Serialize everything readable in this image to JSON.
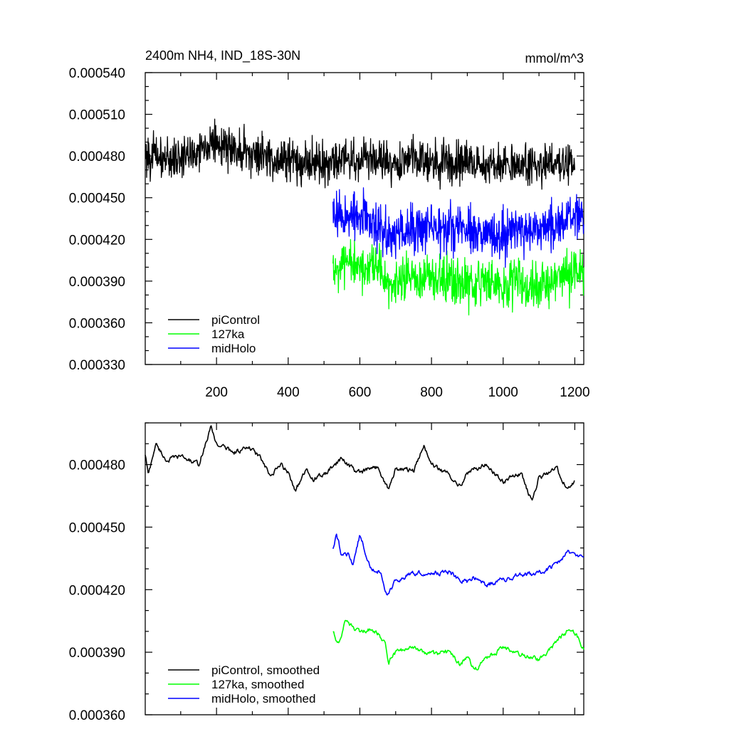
{
  "chart_data": [
    {
      "type": "line",
      "title": "2400m NH4, IND_18S-30N",
      "units": "mmol/m^3",
      "xlim": [
        1,
        1225
      ],
      "ylim": [
        0.00033,
        0.00054
      ],
      "x_ticks": [
        200,
        400,
        600,
        800,
        1000,
        1200
      ],
      "x_tick_labels": [
        "200",
        "400",
        "600",
        "800",
        "1000",
        "1200"
      ],
      "y_ticks": [
        0.00033,
        0.00036,
        0.00039,
        0.00042,
        0.00045,
        0.00048,
        0.00051,
        0.00054
      ],
      "y_tick_labels": [
        "0.000330",
        "0.000360",
        "0.000390",
        "0.000420",
        "0.000450",
        "0.000480",
        "0.000510",
        "0.000540"
      ],
      "legend_position": "bottom-left",
      "series": [
        {
          "name": "piControl",
          "color": "#000000",
          "x": [
            1,
            50,
            100,
            150,
            185,
            200,
            250,
            300,
            350,
            400,
            450,
            500,
            550,
            600,
            650,
            700,
            750,
            800,
            850,
            900,
            950,
            1000,
            1050,
            1100,
            1150,
            1200
          ],
          "y": [
            0.000482,
            0.000478,
            0.000479,
            0.000484,
            0.000491,
            0.000487,
            0.000486,
            0.000481,
            0.000479,
            0.000478,
            0.000476,
            0.000475,
            0.000479,
            0.000478,
            0.000477,
            0.000475,
            0.000479,
            0.000476,
            0.000475,
            0.000476,
            0.000474,
            0.000475,
            0.000473,
            0.000472,
            0.000476,
            0.000471
          ]
        },
        {
          "name": "127ka",
          "color": "#00ff00",
          "x": [
            525,
            550,
            600,
            650,
            680,
            700,
            750,
            800,
            850,
            900,
            950,
            1000,
            1050,
            1100,
            1150,
            1200,
            1225
          ],
          "y": [
            0.000398,
            0.000401,
            0.000399,
            0.000396,
            0.000386,
            0.00039,
            0.000392,
            0.000389,
            0.00039,
            0.000387,
            0.000389,
            0.000391,
            0.000388,
            0.000387,
            0.000392,
            0.000395,
            0.000393
          ]
        },
        {
          "name": "midHolo",
          "color": "#0000ff",
          "x": [
            525,
            550,
            600,
            650,
            680,
            700,
            750,
            800,
            850,
            900,
            950,
            1000,
            1050,
            1100,
            1150,
            1200,
            1225
          ],
          "y": [
            0.000441,
            0.000437,
            0.000436,
            0.000431,
            0.000421,
            0.000424,
            0.000428,
            0.000427,
            0.000428,
            0.000425,
            0.000424,
            0.000425,
            0.000426,
            0.000427,
            0.000431,
            0.000436,
            0.000434
          ]
        }
      ]
    },
    {
      "type": "line",
      "xlim": [
        1,
        1225
      ],
      "ylim": [
        0.00036,
        0.0005
      ],
      "x_ticks": [
        200,
        400,
        600,
        800,
        1000,
        1200
      ],
      "y_ticks": [
        0.00036,
        0.00039,
        0.00042,
        0.00045,
        0.00048
      ],
      "y_tick_labels": [
        "0.000360",
        "0.000390",
        "0.000420",
        "0.000450",
        "0.000480"
      ],
      "legend_position": "bottom-left",
      "series": [
        {
          "name": "piControl, smoothed",
          "color": "#000000",
          "x": [
            1,
            10,
            30,
            60,
            100,
            150,
            185,
            200,
            250,
            290,
            320,
            350,
            380,
            400,
            420,
            450,
            470,
            500,
            550,
            580,
            600,
            650,
            680,
            700,
            750,
            780,
            800,
            850,
            880,
            900,
            950,
            1000,
            1050,
            1080,
            1100,
            1150,
            1180,
            1200
          ],
          "y": [
            0.000485,
            0.000475,
            0.00049,
            0.000482,
            0.000484,
            0.00048,
            0.000498,
            0.00049,
            0.000486,
            0.000488,
            0.000484,
            0.000474,
            0.00048,
            0.000476,
            0.000468,
            0.000477,
            0.000473,
            0.000475,
            0.000483,
            0.000478,
            0.000476,
            0.000479,
            0.000468,
            0.000478,
            0.000477,
            0.000489,
            0.00048,
            0.000475,
            0.00047,
            0.000476,
            0.00048,
            0.000472,
            0.000476,
            0.000462,
            0.000474,
            0.000478,
            0.000468,
            0.000472
          ]
        },
        {
          "name": "127ka, smoothed",
          "color": "#00ff00",
          "x": [
            525,
            540,
            560,
            580,
            600,
            620,
            650,
            670,
            680,
            700,
            750,
            800,
            850,
            880,
            900,
            920,
            950,
            1000,
            1050,
            1100,
            1150,
            1180,
            1200,
            1225
          ],
          "y": [
            0.0004,
            0.000394,
            0.000405,
            0.000402,
            0.000399,
            0.000401,
            0.000399,
            0.000395,
            0.000385,
            0.00039,
            0.000392,
            0.000389,
            0.00039,
            0.000384,
            0.000388,
            0.000381,
            0.000387,
            0.000392,
            0.000389,
            0.000386,
            0.000395,
            0.0004,
            0.000399,
            0.000392
          ]
        },
        {
          "name": "midHolo, smoothed",
          "color": "#0000ff",
          "x": [
            525,
            535,
            550,
            570,
            580,
            600,
            630,
            660,
            675,
            700,
            750,
            800,
            850,
            900,
            920,
            950,
            1000,
            1050,
            1100,
            1150,
            1180,
            1200,
            1225
          ],
          "y": [
            0.00044,
            0.000447,
            0.000436,
            0.000437,
            0.000432,
            0.000446,
            0.000431,
            0.000428,
            0.000417,
            0.000424,
            0.000428,
            0.000428,
            0.000428,
            0.000423,
            0.000426,
            0.000422,
            0.000425,
            0.000427,
            0.000428,
            0.000432,
            0.000438,
            0.000437,
            0.000434
          ]
        }
      ]
    }
  ]
}
